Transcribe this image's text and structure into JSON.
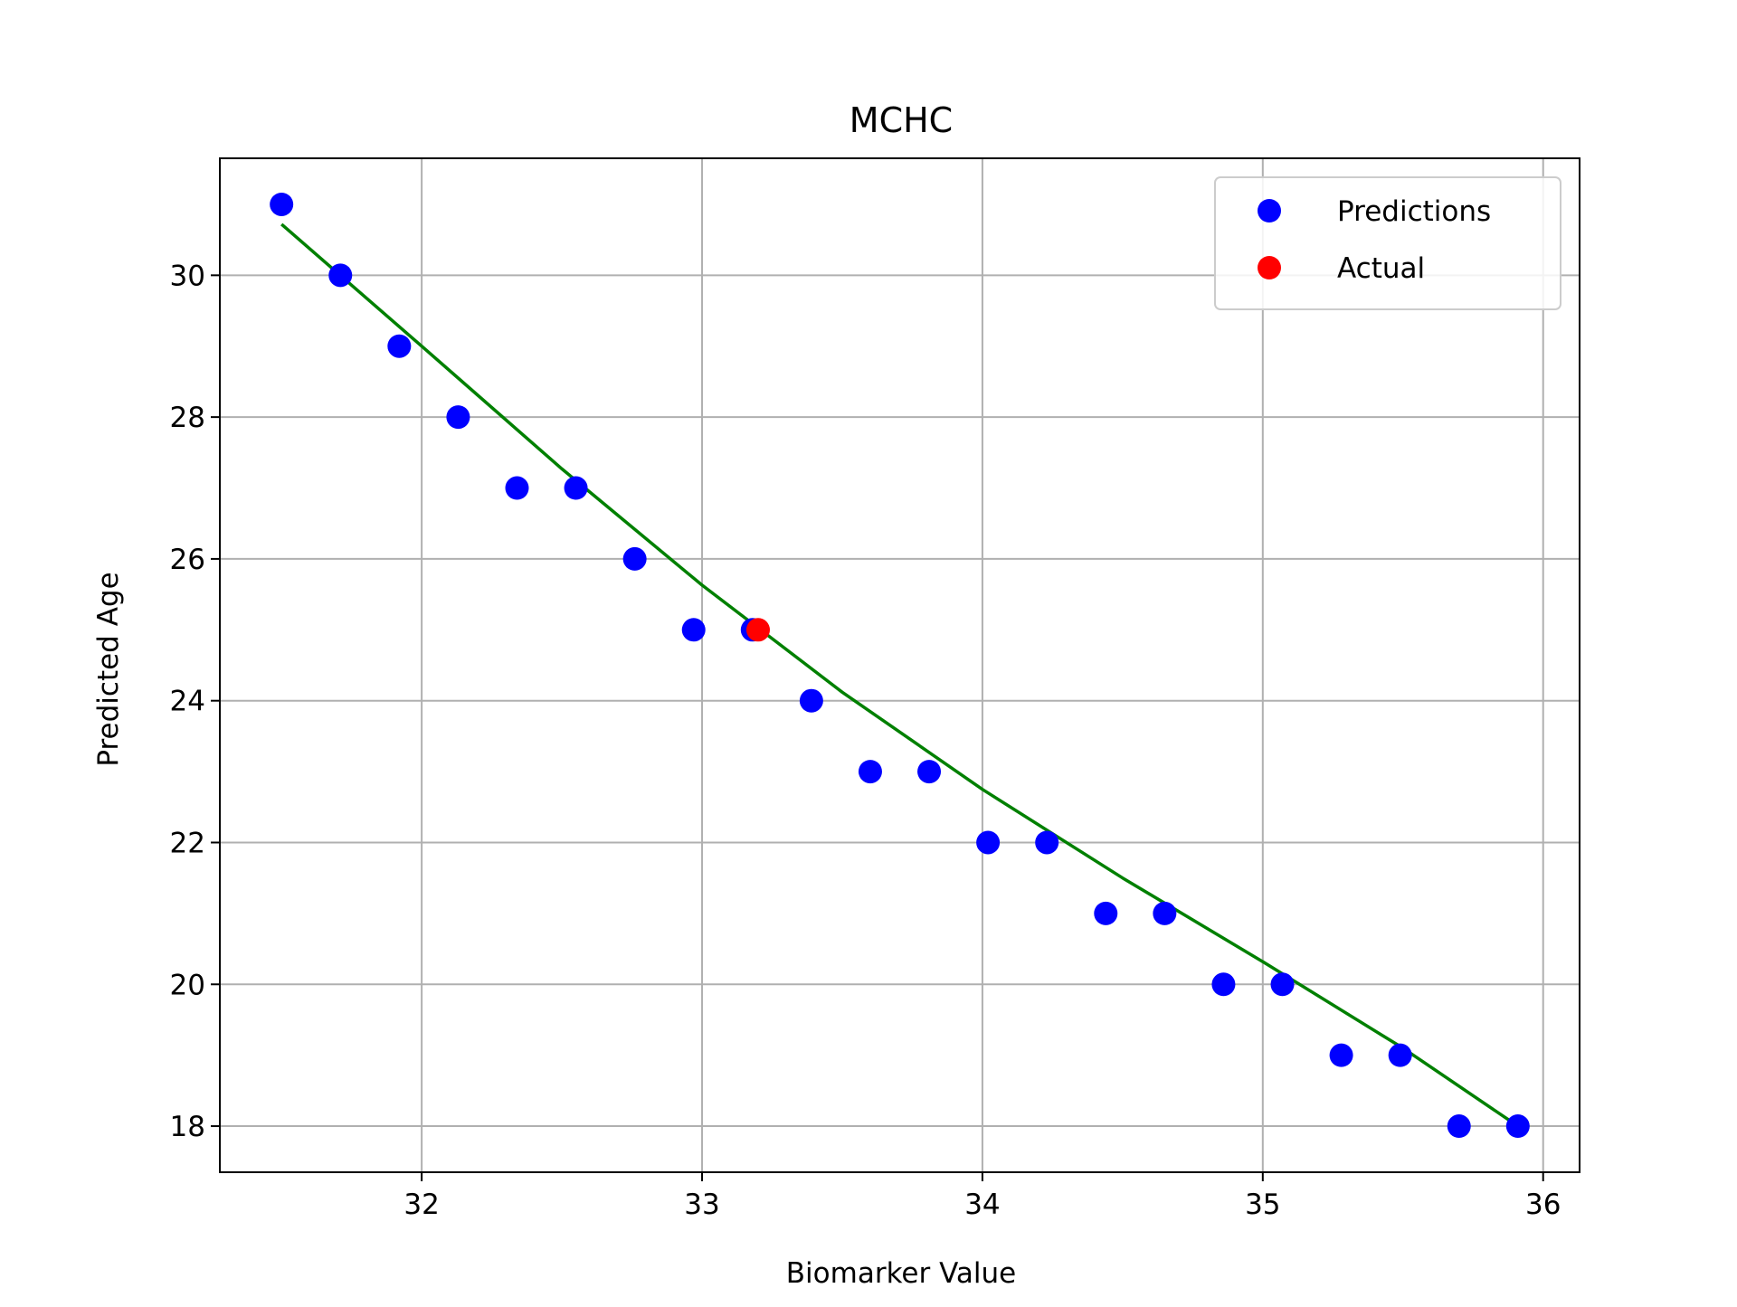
{
  "chart_data": {
    "type": "scatter",
    "title": "MCHC",
    "xlabel": "Biomarker Value",
    "ylabel": "Predicted Age",
    "xlim": [
      31.28,
      36.13
    ],
    "ylim": [
      17.35,
      31.65
    ],
    "xticks": [
      32,
      33,
      34,
      35,
      36
    ],
    "yticks": [
      18,
      20,
      22,
      24,
      26,
      28,
      30
    ],
    "grid": true,
    "legend_position": "top-right",
    "series": [
      {
        "name": "Predictions",
        "color": "#0000ff",
        "kind": "points",
        "x": [
          31.5,
          31.71,
          31.92,
          32.13,
          32.34,
          32.55,
          32.76,
          32.97,
          33.18,
          33.39,
          33.6,
          33.81,
          34.02,
          34.23,
          34.44,
          34.65,
          34.86,
          35.07,
          35.28,
          35.49,
          35.7,
          35.91
        ],
        "y": [
          31,
          30,
          29,
          28,
          27,
          27,
          26,
          25,
          25,
          24,
          23,
          23,
          22,
          22,
          21,
          21,
          20,
          20,
          19,
          19,
          18,
          18
        ]
      },
      {
        "name": "Actual",
        "color": "#ff0000",
        "kind": "points",
        "x": [
          33.2
        ],
        "y": [
          25
        ]
      },
      {
        "color": "#008000",
        "kind": "line",
        "x": [
          31.5,
          32.0,
          32.5,
          33.0,
          33.5,
          34.0,
          34.5,
          35.0,
          35.5,
          35.91
        ],
        "y": [
          30.72,
          29.0,
          27.27,
          25.63,
          24.12,
          22.75,
          21.5,
          20.32,
          19.1,
          18.0
        ]
      }
    ]
  }
}
